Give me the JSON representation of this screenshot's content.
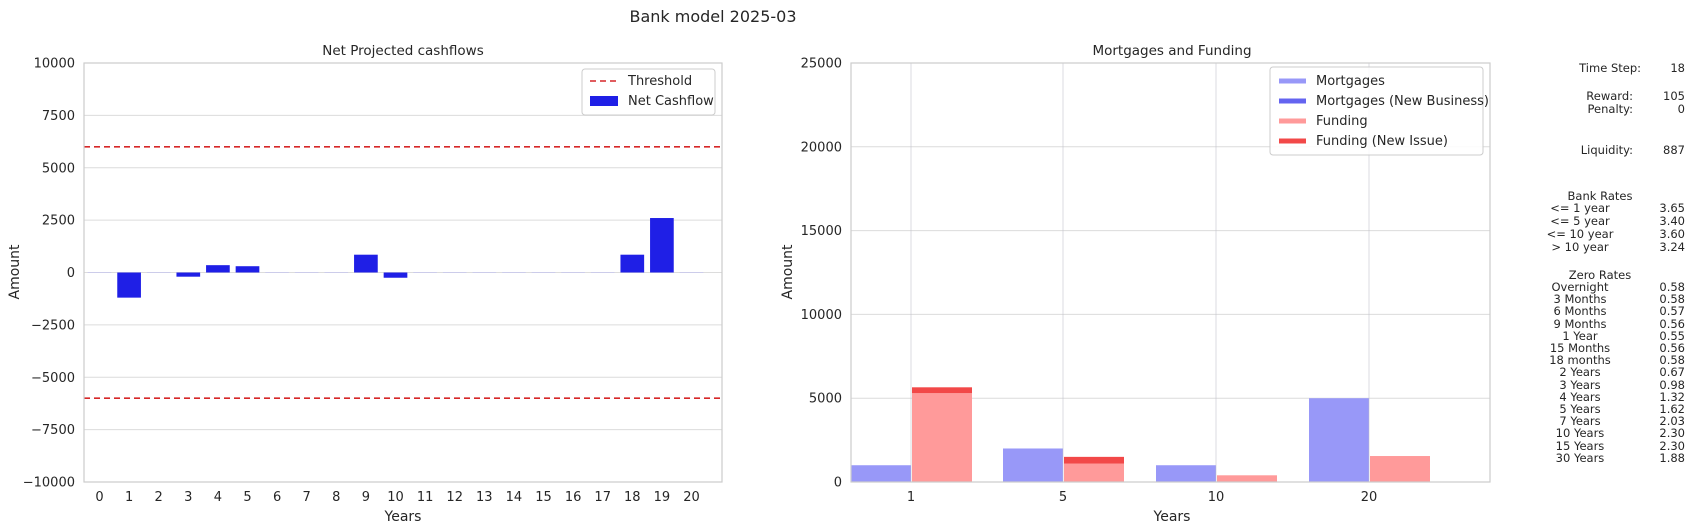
{
  "figure_title": "Bank model 2025-03",
  "chart_data": [
    {
      "type": "bar",
      "title": "Net Projected cashflows",
      "xlabel": "Years",
      "ylabel": "Amount",
      "ylim": [
        -10000,
        10000
      ],
      "yticks": [
        -10000,
        -7500,
        -5000,
        -2500,
        0,
        2500,
        5000,
        7500,
        10000
      ],
      "ytick_labels": [
        "−10000",
        "−7500",
        "−5000",
        "−2500",
        "0",
        "2500",
        "5000",
        "7500",
        "10000"
      ],
      "categories": [
        "0",
        "1",
        "2",
        "3",
        "4",
        "5",
        "6",
        "7",
        "8",
        "9",
        "10",
        "11",
        "12",
        "13",
        "14",
        "15",
        "16",
        "17",
        "18",
        "19",
        "20"
      ],
      "series": [
        {
          "name": "Net Cashflow",
          "color": "#1f1fe6",
          "values": [
            0,
            -1200,
            0,
            -200,
            350,
            300,
            0,
            0,
            0,
            850,
            -250,
            0,
            0,
            0,
            0,
            0,
            0,
            0,
            850,
            2600,
            0
          ]
        }
      ],
      "thresholds": {
        "name": "Threshold",
        "values": [
          6000,
          -6000
        ],
        "color": "#d62728"
      },
      "legend": "top-right",
      "grid": true
    },
    {
      "type": "bar",
      "title": "Mortgages and Funding",
      "xlabel": "Years",
      "ylabel": "Amount",
      "ylim": [
        0,
        25000
      ],
      "yticks": [
        0,
        5000,
        10000,
        15000,
        20000,
        25000
      ],
      "ytick_labels": [
        "0",
        "5000",
        "10000",
        "15000",
        "20000",
        "25000"
      ],
      "categories": [
        "1",
        "5",
        "10",
        "20"
      ],
      "series": [
        {
          "name": "Mortgages",
          "color": "#9898f8",
          "values": [
            1000,
            2000,
            1000,
            5000
          ]
        },
        {
          "name": "Mortgages (New Business)",
          "color": "#6464f0",
          "values": [
            0,
            0,
            0,
            0
          ]
        },
        {
          "name": "Funding",
          "color": "#ff9a9a",
          "values": [
            5300,
            1100,
            400,
            1550
          ]
        },
        {
          "name": "Funding (New Issue)",
          "color": "#f24848",
          "values": [
            350,
            400,
            0,
            0
          ]
        }
      ],
      "legend": "top-right",
      "grid": true
    }
  ],
  "info": {
    "time_step_label": "Time Step:",
    "time_step_value": "18",
    "reward_label": "Reward:",
    "reward_value": "105",
    "penalty_label": "Penalty:",
    "penalty_value": "0",
    "liquidity_label": "Liquidity:",
    "liquidity_value": "887",
    "bank_rates_title": "Bank Rates",
    "bank_rates": [
      {
        "label": "<= 1 year",
        "value": "3.65"
      },
      {
        "label": "<= 5 year",
        "value": "3.40"
      },
      {
        "label": "<= 10 year",
        "value": "3.60"
      },
      {
        "label": "> 10 year",
        "value": "3.24"
      }
    ],
    "zero_rates_title": "Zero Rates",
    "zero_rates": [
      {
        "label": "Overnight",
        "value": "0.58"
      },
      {
        "label": "3 Months",
        "value": "0.58"
      },
      {
        "label": "6 Months",
        "value": "0.57"
      },
      {
        "label": "9 Months",
        "value": "0.56"
      },
      {
        "label": "1 Year",
        "value": "0.55"
      },
      {
        "label": "15 Months",
        "value": "0.56"
      },
      {
        "label": "18 months",
        "value": "0.58"
      },
      {
        "label": "2 Years",
        "value": "0.67"
      },
      {
        "label": "3 Years",
        "value": "0.98"
      },
      {
        "label": "4 Years",
        "value": "1.32"
      },
      {
        "label": "5 Years",
        "value": "1.62"
      },
      {
        "label": "7 Years",
        "value": "2.03"
      },
      {
        "label": "10 Years",
        "value": "2.30"
      },
      {
        "label": "15 Years",
        "value": "2.30"
      },
      {
        "label": "30 Years",
        "value": "1.88"
      }
    ]
  }
}
